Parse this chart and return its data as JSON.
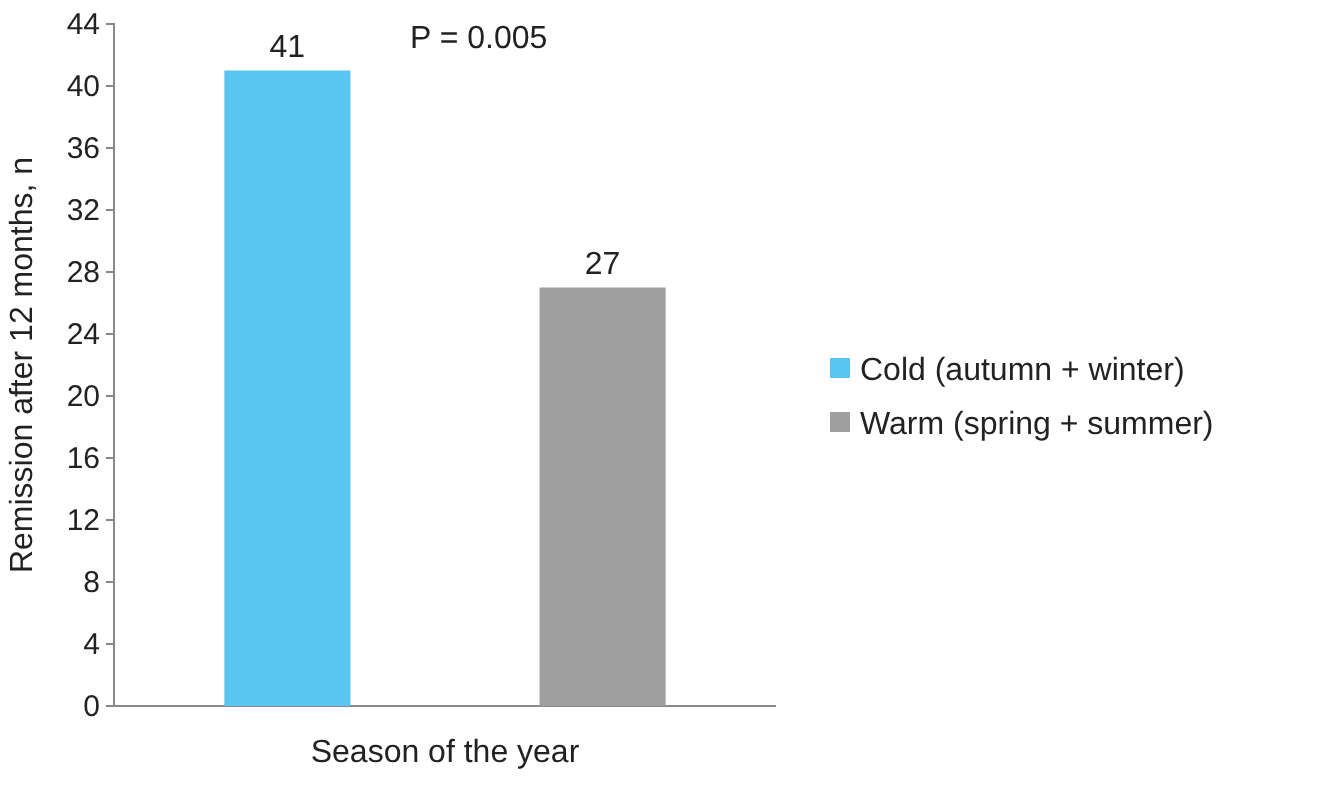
{
  "chart_data": {
    "type": "bar",
    "xlabel": "Season of the year",
    "ylabel": "Remission after 12 months, n",
    "categories": [
      null,
      null
    ],
    "series": [
      {
        "name": "Cold (autumn + winter)",
        "color": "#5bc5f2",
        "values": [
          41,
          null
        ]
      },
      {
        "name": "Warm (spring + summer)",
        "color": "#a09f9f",
        "values": [
          null,
          27
        ]
      }
    ],
    "ylim": [
      0,
      44
    ],
    "yticks": [
      0,
      4,
      8,
      12,
      16,
      20,
      24,
      28,
      32,
      36,
      40,
      44
    ],
    "data_labels": true,
    "legend": "right",
    "grid": false,
    "annotations": [
      "P = 0.005"
    ]
  }
}
